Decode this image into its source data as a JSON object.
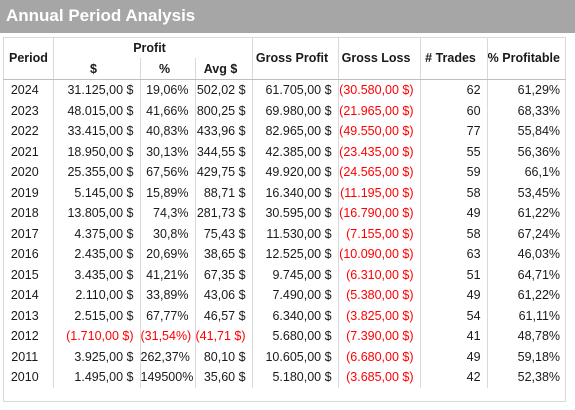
{
  "title": "Annual Period Analysis",
  "headers": {
    "period": "Period",
    "profit": "Profit",
    "dollar": "$",
    "percent": "%",
    "avg": "Avg $",
    "gross_profit": "Gross Profit",
    "gross_loss": "Gross Loss",
    "trades": "# Trades",
    "profitable": "% Profitable"
  },
  "colors": {
    "title_bar": "#a6a6a6",
    "negative": "#ff0000"
  },
  "rows": [
    {
      "period": "2024",
      "profit": "31.125,00 $",
      "pct": "19,06%",
      "avg": "502,02 $",
      "gross_profit": "61.705,00 $",
      "gross_loss": "(30.580,00 $)",
      "trades": "62",
      "profitable": "61,29%"
    },
    {
      "period": "2023",
      "profit": "48.015,00 $",
      "pct": "41,66%",
      "avg": "800,25 $",
      "gross_profit": "69.980,00 $",
      "gross_loss": "(21.965,00 $)",
      "trades": "60",
      "profitable": "68,33%"
    },
    {
      "period": "2022",
      "profit": "33.415,00 $",
      "pct": "40,83%",
      "avg": "433,96 $",
      "gross_profit": "82.965,00 $",
      "gross_loss": "(49.550,00 $)",
      "trades": "77",
      "profitable": "55,84%"
    },
    {
      "period": "2021",
      "profit": "18.950,00 $",
      "pct": "30,13%",
      "avg": "344,55 $",
      "gross_profit": "42.385,00 $",
      "gross_loss": "(23.435,00 $)",
      "trades": "55",
      "profitable": "56,36%"
    },
    {
      "period": "2020",
      "profit": "25.355,00 $",
      "pct": "67,56%",
      "avg": "429,75 $",
      "gross_profit": "49.920,00 $",
      "gross_loss": "(24.565,00 $)",
      "trades": "59",
      "profitable": "66,1%"
    },
    {
      "period": "2019",
      "profit": "5.145,00 $",
      "pct": "15,89%",
      "avg": "88,71 $",
      "gross_profit": "16.340,00 $",
      "gross_loss": "(11.195,00 $)",
      "trades": "58",
      "profitable": "53,45%"
    },
    {
      "period": "2018",
      "profit": "13.805,00 $",
      "pct": "74,3%",
      "avg": "281,73 $",
      "gross_profit": "30.595,00 $",
      "gross_loss": "(16.790,00 $)",
      "trades": "49",
      "profitable": "61,22%"
    },
    {
      "period": "2017",
      "profit": "4.375,00 $",
      "pct": "30,8%",
      "avg": "75,43 $",
      "gross_profit": "11.530,00 $",
      "gross_loss": "(7.155,00 $)",
      "trades": "58",
      "profitable": "67,24%"
    },
    {
      "period": "2016",
      "profit": "2.435,00 $",
      "pct": "20,69%",
      "avg": "38,65 $",
      "gross_profit": "12.525,00 $",
      "gross_loss": "(10.090,00 $)",
      "trades": "63",
      "profitable": "46,03%"
    },
    {
      "period": "2015",
      "profit": "3.435,00 $",
      "pct": "41,21%",
      "avg": "67,35 $",
      "gross_profit": "9.745,00 $",
      "gross_loss": "(6.310,00 $)",
      "trades": "51",
      "profitable": "64,71%"
    },
    {
      "period": "2014",
      "profit": "2.110,00 $",
      "pct": "33,89%",
      "avg": "43,06 $",
      "gross_profit": "7.490,00 $",
      "gross_loss": "(5.380,00 $)",
      "trades": "49",
      "profitable": "61,22%"
    },
    {
      "period": "2013",
      "profit": "2.515,00 $",
      "pct": "67,77%",
      "avg": "46,57 $",
      "gross_profit": "6.340,00 $",
      "gross_loss": "(3.825,00 $)",
      "trades": "54",
      "profitable": "61,11%"
    },
    {
      "period": "2012",
      "profit": "(1.710,00 $)",
      "pct": "(31,54%)",
      "avg": "(41,71 $)",
      "gross_profit": "5.680,00 $",
      "gross_loss": "(7.390,00 $)",
      "trades": "41",
      "profitable": "48,78%",
      "negative": true
    },
    {
      "period": "2011",
      "profit": "3.925,00 $",
      "pct": "262,37%",
      "avg": "80,10 $",
      "gross_profit": "10.605,00 $",
      "gross_loss": "(6.680,00 $)",
      "trades": "49",
      "profitable": "59,18%"
    },
    {
      "period": "2010",
      "profit": "1.495,00 $",
      "pct": "149500%",
      "avg": "35,60 $",
      "gross_profit": "5.180,00 $",
      "gross_loss": "(3.685,00 $)",
      "trades": "42",
      "profitable": "52,38%"
    }
  ]
}
